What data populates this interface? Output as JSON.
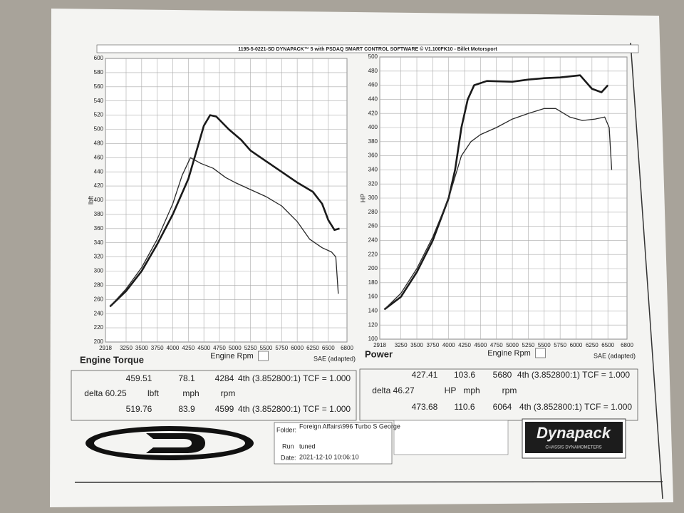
{
  "header": {
    "title": "1195-5-0221-SD DYNAPACK™ 5 with PSDAQ SMART CONTROL SOFTWARE © V1.100FK10 - Billet Motorsport"
  },
  "chart_data": [
    {
      "type": "line",
      "title": "Engine Torque",
      "ylabel": "lbft",
      "xlabel": "Engine Rpm",
      "note": "SAE (adapted)",
      "xlim": [
        2918,
        6800
      ],
      "xticks": [
        2918,
        3250,
        3500,
        3750,
        4000,
        4250,
        4500,
        4750,
        5000,
        5250,
        5500,
        5750,
        6000,
        6250,
        6500,
        6800
      ],
      "ylim": [
        200,
        600
      ],
      "yticks": [
        200,
        220,
        240,
        260,
        280,
        300,
        320,
        340,
        360,
        380,
        400,
        420,
        440,
        460,
        480,
        500,
        520,
        540,
        560,
        580,
        600
      ],
      "grid": true,
      "series": [
        {
          "color": "#1a1a1a",
          "line_width": 2.6,
          "x": [
            2990,
            3250,
            3500,
            3750,
            4000,
            4250,
            4400,
            4500,
            4600,
            4700,
            4900,
            5100,
            5250,
            5500,
            5750,
            6000,
            6250,
            6400,
            6500,
            6600,
            6680
          ],
          "values": [
            250,
            272,
            300,
            338,
            380,
            430,
            475,
            505,
            520,
            518,
            500,
            485,
            470,
            455,
            440,
            425,
            412,
            395,
            372,
            358,
            360
          ]
        },
        {
          "color": "#2a2a2a",
          "line_width": 1.3,
          "x": [
            2990,
            3250,
            3500,
            3750,
            4000,
            4150,
            4284,
            4450,
            4650,
            4850,
            5000,
            5250,
            5500,
            5750,
            6000,
            6200,
            6400,
            6550,
            6620,
            6660
          ],
          "values": [
            250,
            275,
            305,
            345,
            395,
            435,
            460,
            452,
            445,
            432,
            425,
            415,
            405,
            392,
            370,
            345,
            333,
            327,
            320,
            268
          ]
        }
      ]
    },
    {
      "type": "line",
      "title": "Power",
      "ylabel": "HP",
      "xlabel": "Engine Rpm",
      "note": "SAE (adapted)",
      "xlim": [
        2918,
        6800
      ],
      "xticks": [
        2918,
        3250,
        3500,
        3750,
        4000,
        4250,
        4500,
        4750,
        5000,
        5250,
        5500,
        5750,
        6000,
        6250,
        6500,
        6800
      ],
      "ylim": [
        100,
        500
      ],
      "yticks": [
        100,
        120,
        140,
        160,
        180,
        200,
        220,
        240,
        260,
        280,
        300,
        320,
        340,
        360,
        380,
        400,
        420,
        440,
        460,
        480,
        500
      ],
      "grid": true,
      "series": [
        {
          "color": "#1a1a1a",
          "line_width": 2.6,
          "x": [
            2990,
            3250,
            3500,
            3750,
            4000,
            4100,
            4200,
            4300,
            4400,
            4600,
            5000,
            5250,
            5500,
            5750,
            6064,
            6250,
            6400,
            6500
          ],
          "values": [
            142,
            160,
            195,
            240,
            300,
            340,
            400,
            440,
            460,
            466,
            465,
            468,
            470,
            471,
            474,
            455,
            450,
            460
          ]
        },
        {
          "color": "#2a2a2a",
          "line_width": 1.3,
          "x": [
            2990,
            3250,
            3500,
            3750,
            4000,
            4200,
            4350,
            4500,
            4750,
            5000,
            5250,
            5500,
            5680,
            5900,
            6100,
            6300,
            6450,
            6520,
            6560
          ],
          "values": [
            142,
            165,
            200,
            245,
            300,
            360,
            380,
            390,
            400,
            412,
            420,
            427,
            427,
            415,
            410,
            412,
            415,
            400,
            340
          ]
        }
      ]
    }
  ],
  "tables": [
    {
      "rows": [
        [
          "459.51",
          "78.1",
          "4284",
          "4th (3.852800:1) TCF = 1.000"
        ],
        [
          "delta 60.25",
          "lbft",
          "mph",
          "rpm"
        ],
        [
          "519.76",
          "83.9",
          "4599",
          "4th (3.852800:1) TCF = 1.000"
        ]
      ]
    },
    {
      "rows": [
        [
          "427.41",
          "103.6",
          "5680",
          "4th (3.852800:1) TCF = 1.000"
        ],
        [
          "delta 46.27",
          "HP",
          "mph",
          "rpm"
        ],
        [
          "473.68",
          "110.6",
          "6064",
          "4th (3.852800:1) TCF = 1.000"
        ]
      ]
    }
  ],
  "info": {
    "folder_label": "Folder:",
    "folder": "Foreign Affairs\\996 Turbo S George",
    "run_label": "Run",
    "run": "tuned",
    "date_label": "Date:",
    "date": "2021-12-10 10:06:10"
  },
  "logo": {
    "name": "Dynapack",
    "sub": "CHASSIS DYNAMOMETERS"
  }
}
